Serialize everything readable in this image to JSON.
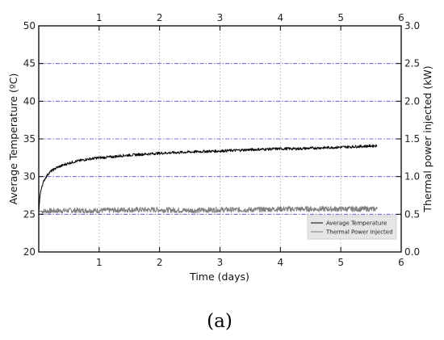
{
  "chart_data": {
    "type": "line",
    "caption": "(a)",
    "xlabel": "Time (days)",
    "ylabel_left": "Average Temperature (ºC)",
    "ylabel_right": "Thermal power injected (kW)",
    "xlim": [
      0,
      6
    ],
    "ylim_left": [
      20,
      50
    ],
    "ylim_right": [
      0.0,
      3.0
    ],
    "x_ticks": [
      "1",
      "2",
      "3",
      "4",
      "5",
      "6"
    ],
    "y_ticks_left": [
      "20",
      "25",
      "30",
      "35",
      "40",
      "45",
      "50"
    ],
    "y_ticks_right": [
      "0.0",
      "0.5",
      "1.0",
      "1.5",
      "2.0",
      "2.5",
      "3.0"
    ],
    "grid": true,
    "legend_position": "bottom-right",
    "series": [
      {
        "name": "Average Temperature",
        "axis": "left",
        "color": "#000000",
        "x": [
          0,
          0.02,
          0.05,
          0.1,
          0.15,
          0.2,
          0.3,
          0.4,
          0.5,
          0.6,
          0.8,
          1.0,
          1.2,
          1.4,
          1.6,
          1.8,
          2.0,
          2.3,
          2.6,
          3.0,
          3.3,
          3.6,
          4.0,
          4.3,
          4.6,
          5.0,
          5.3,
          5.6
        ],
        "y": [
          25.2,
          27.5,
          28.7,
          29.7,
          30.3,
          30.7,
          31.2,
          31.5,
          31.8,
          32.0,
          32.3,
          32.5,
          32.6,
          32.8,
          32.9,
          33.0,
          33.1,
          33.2,
          33.3,
          33.4,
          33.5,
          33.6,
          33.7,
          33.7,
          33.8,
          33.9,
          34.0,
          34.1
        ]
      },
      {
        "name": "Thermal Power Injected",
        "axis": "right",
        "color": "#808080",
        "x": [
          0,
          0.5,
          1.0,
          1.5,
          2.0,
          2.5,
          3.0,
          3.5,
          4.0,
          4.5,
          5.0,
          5.6
        ],
        "y": [
          0.54,
          0.55,
          0.55,
          0.56,
          0.56,
          0.55,
          0.56,
          0.56,
          0.57,
          0.57,
          0.57,
          0.57
        ]
      }
    ]
  }
}
